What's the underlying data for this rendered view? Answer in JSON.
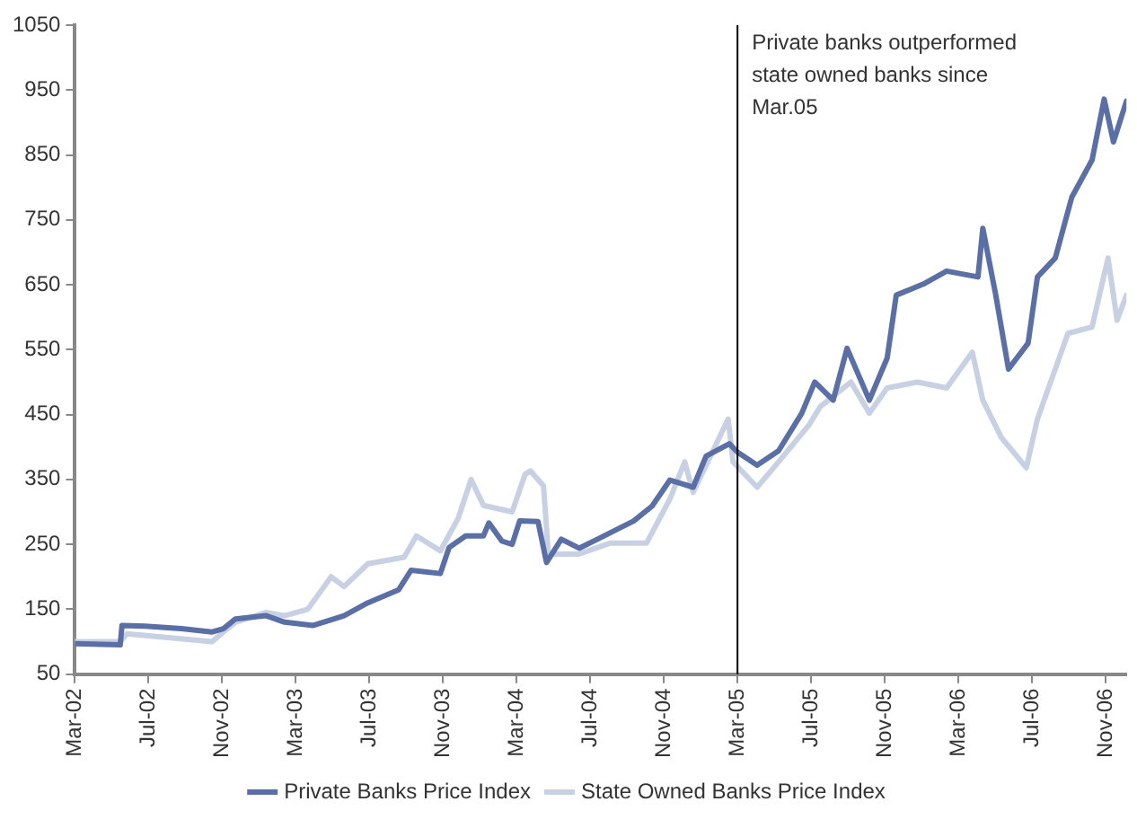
{
  "chart_data": {
    "type": "line",
    "xlim": [
      "2002-03-01",
      "2006-12-05"
    ],
    "xticks": [
      {
        "value": "2002-03-01",
        "label": "Mar-02"
      },
      {
        "value": "2002-07-01",
        "label": "Jul-02"
      },
      {
        "value": "2002-11-01",
        "label": "Nov-02"
      },
      {
        "value": "2003-03-01",
        "label": "Mar-03"
      },
      {
        "value": "2003-07-01",
        "label": "Jul-03"
      },
      {
        "value": "2003-11-01",
        "label": "Nov-03"
      },
      {
        "value": "2004-03-01",
        "label": "Mar-04"
      },
      {
        "value": "2004-07-01",
        "label": "Jul-04"
      },
      {
        "value": "2004-11-01",
        "label": "Nov-04"
      },
      {
        "value": "2005-03-01",
        "label": "Mar-05"
      },
      {
        "value": "2005-07-01",
        "label": "Jul-05"
      },
      {
        "value": "2005-11-01",
        "label": "Nov-05"
      },
      {
        "value": "2006-03-01",
        "label": "Mar-06"
      },
      {
        "value": "2006-07-01",
        "label": "Jul-06"
      },
      {
        "value": "2006-11-01",
        "label": "Nov-06"
      }
    ],
    "ylim": [
      50,
      1050
    ],
    "yticks": [
      50,
      150,
      250,
      350,
      450,
      550,
      650,
      750,
      850,
      950,
      1050
    ],
    "grid": false,
    "legend": "bottom",
    "marker": "none",
    "line_style": "solid",
    "ref_lines": [
      {
        "axis": "x",
        "value": "2005-03-01",
        "label": "Private banks outperformed state owned banks since Mar.05",
        "color": "#000000"
      }
    ],
    "series": [
      {
        "name": "Private Banks Price Index",
        "color": "#5a6fa6",
        "x": [
          "2002-03-01",
          "2002-05-15",
          "2002-05-18",
          "2002-06-26",
          "2002-08-25",
          "2002-10-15",
          "2002-11-03",
          "2002-11-23",
          "2003-01-13",
          "2003-02-13",
          "2003-03-30",
          "2003-05-20",
          "2003-06-29",
          "2003-08-19",
          "2003-09-09",
          "2003-10-27",
          "2003-11-11",
          "2003-12-08",
          "2004-01-07",
          "2004-01-16",
          "2004-02-07",
          "2004-02-24",
          "2004-03-06",
          "2004-04-06",
          "2004-04-20",
          "2004-05-14",
          "2004-06-13",
          "2004-07-13",
          "2004-09-12",
          "2004-10-12",
          "2004-11-11",
          "2004-12-19",
          "2005-01-10",
          "2005-02-18",
          "2005-03-01",
          "2005-04-03",
          "2005-05-08",
          "2005-06-16",
          "2005-07-07",
          "2005-08-07",
          "2005-08-30",
          "2005-10-06",
          "2005-11-05",
          "2005-11-20",
          "2006-01-04",
          "2006-02-12",
          "2006-04-03",
          "2006-04-11",
          "2006-05-02",
          "2006-05-23",
          "2006-06-25",
          "2006-07-10",
          "2006-08-09",
          "2006-09-06",
          "2006-10-09",
          "2006-10-29",
          "2006-11-14",
          "2006-12-05"
        ],
        "values": [
          97,
          95,
          125,
          124,
          120,
          115,
          120,
          135,
          140,
          130,
          125,
          140,
          160,
          180,
          210,
          205,
          245,
          263,
          263,
          283,
          255,
          250,
          286,
          285,
          222,
          258,
          244,
          258,
          286,
          309,
          349,
          338,
          386,
          405,
          392,
          372,
          394,
          452,
          500,
          472,
          552,
          472,
          537,
          634,
          651,
          671,
          662,
          737,
          634,
          520,
          560,
          662,
          691,
          785,
          842,
          936,
          870,
          933
        ]
      },
      {
        "name": "State Owned Banks Price Index",
        "color": "#c8d0e3",
        "x": [
          "2002-03-01",
          "2002-05-15",
          "2002-05-26",
          "2002-10-15",
          "2002-11-03",
          "2002-11-23",
          "2003-01-13",
          "2003-02-13",
          "2003-03-21",
          "2003-04-29",
          "2003-05-20",
          "2003-06-29",
          "2003-08-28",
          "2003-09-18",
          "2003-10-27",
          "2003-11-26",
          "2003-12-17",
          "2004-01-07",
          "2004-02-24",
          "2004-03-15",
          "2004-03-24",
          "2004-04-15",
          "2004-04-23",
          "2004-06-13",
          "2004-08-04",
          "2004-10-03",
          "2004-11-11",
          "2004-12-05",
          "2004-12-19",
          "2005-02-16",
          "2005-02-24",
          "2005-04-03",
          "2005-05-08",
          "2005-06-28",
          "2005-07-16",
          "2005-09-06",
          "2005-10-06",
          "2005-11-05",
          "2005-12-25",
          "2006-02-12",
          "2006-03-24",
          "2006-04-11",
          "2006-05-11",
          "2006-06-22",
          "2006-07-10",
          "2006-08-30",
          "2006-10-09",
          "2006-11-05",
          "2006-11-20",
          "2006-12-05"
        ],
        "values": [
          100,
          100,
          112,
          100,
          115,
          130,
          145,
          140,
          150,
          200,
          185,
          220,
          230,
          263,
          240,
          290,
          350,
          310,
          300,
          358,
          363,
          340,
          235,
          235,
          252,
          252,
          320,
          377,
          330,
          443,
          377,
          338,
          377,
          434,
          462,
          500,
          452,
          491,
          500,
          491,
          546,
          472,
          415,
          368,
          443,
          575,
          585,
          691,
          595,
          634
        ]
      }
    ]
  }
}
